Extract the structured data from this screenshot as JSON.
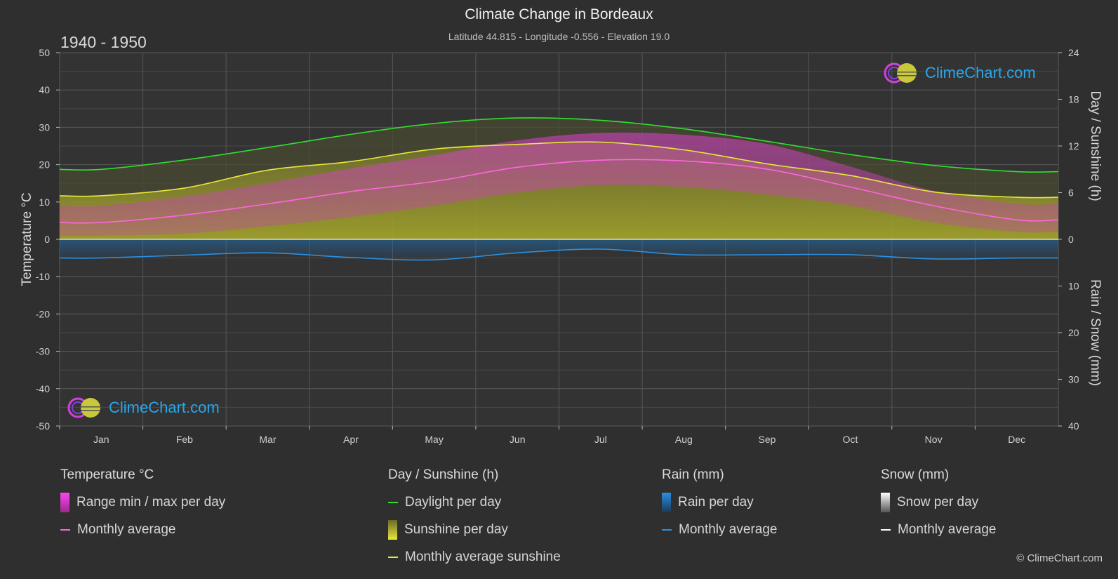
{
  "header": {
    "title": "Climate Change in Bordeaux",
    "subtitle": "Latitude 44.815 - Longitude -0.556 - Elevation 19.0",
    "period": "1940 - 1950"
  },
  "logo": {
    "text": "ClimeChart.com"
  },
  "copyright": "© ClimeChart.com",
  "colors": {
    "background": "#2f2f2f",
    "daylight": "#33dd33",
    "sunshine_avg": "#e8e83a",
    "temp_avg": "#ff66dd",
    "rain_avg": "#2b8fe0",
    "snow_avg": "#ffffff",
    "temp_range": "#dd33cc",
    "sunshine_fill": "#b5b52a",
    "rain_fill": "#1e6fb0"
  },
  "chart_data": {
    "type": "line",
    "categories": [
      "Jan",
      "Feb",
      "Mar",
      "Apr",
      "May",
      "Jun",
      "Jul",
      "Aug",
      "Sep",
      "Oct",
      "Nov",
      "Dec"
    ],
    "left_axis": {
      "label": "Temperature °C",
      "range": [
        -50,
        50
      ],
      "ticks": [
        50,
        40,
        30,
        20,
        10,
        0,
        -10,
        -20,
        -30,
        -40,
        -50
      ]
    },
    "right_axis_top": {
      "label": "Day / Sunshine (h)",
      "range": [
        0,
        24
      ],
      "ticks": [
        24,
        18,
        12,
        6,
        0
      ]
    },
    "right_axis_bottom": {
      "label": "Rain / Snow (mm)",
      "range": [
        0,
        40
      ],
      "ticks": [
        0,
        10,
        20,
        30,
        40
      ]
    },
    "grid": true,
    "series": [
      {
        "name": "Daylight per day",
        "axis": "hours",
        "values": [
          9.0,
          10.2,
          11.8,
          13.5,
          14.9,
          15.6,
          15.3,
          14.2,
          12.6,
          10.9,
          9.5,
          8.7
        ]
      },
      {
        "name": "Monthly average sunshine",
        "axis": "hours",
        "values": [
          5.6,
          6.6,
          8.9,
          10.0,
          11.6,
          12.2,
          12.5,
          11.5,
          9.7,
          8.2,
          6.1,
          5.4
        ]
      },
      {
        "name": "Monthly average",
        "group": "Temperature °C",
        "axis": "temperature",
        "values": [
          4.5,
          6.5,
          9.5,
          12.8,
          15.5,
          19.3,
          21.2,
          21.0,
          18.8,
          14.0,
          9.0,
          5.2
        ]
      },
      {
        "name": "Monthly average",
        "group": "Rain (mm)",
        "axis": "precip",
        "values": [
          4.0,
          3.4,
          2.9,
          3.9,
          4.4,
          2.9,
          2.1,
          3.3,
          3.3,
          3.3,
          4.2,
          4.0
        ]
      },
      {
        "name": "Monthly average",
        "group": "Snow (mm)",
        "axis": "precip",
        "values": [
          0,
          0,
          0,
          0,
          0,
          0,
          0,
          0,
          0,
          0,
          0,
          0
        ]
      }
    ],
    "temp_range_approx": {
      "min": [
        1,
        1.5,
        3.5,
        6,
        9,
        12.5,
        14.5,
        14,
        12,
        9,
        4.5,
        2
      ],
      "max": [
        9,
        11.5,
        15,
        19,
        22.5,
        26.5,
        28.5,
        28,
        25.5,
        19.5,
        13,
        9.5
      ]
    }
  },
  "legend": {
    "temperature": {
      "heading": "Temperature °C",
      "items": [
        "Range min / max per day",
        "Monthly average"
      ]
    },
    "sunshine": {
      "heading": "Day / Sunshine (h)",
      "items": [
        "Daylight per day",
        "Sunshine per day",
        "Monthly average sunshine"
      ]
    },
    "rain": {
      "heading": "Rain (mm)",
      "items": [
        "Rain per day",
        "Monthly average"
      ]
    },
    "snow": {
      "heading": "Snow (mm)",
      "items": [
        "Snow per day",
        "Monthly average"
      ]
    }
  }
}
